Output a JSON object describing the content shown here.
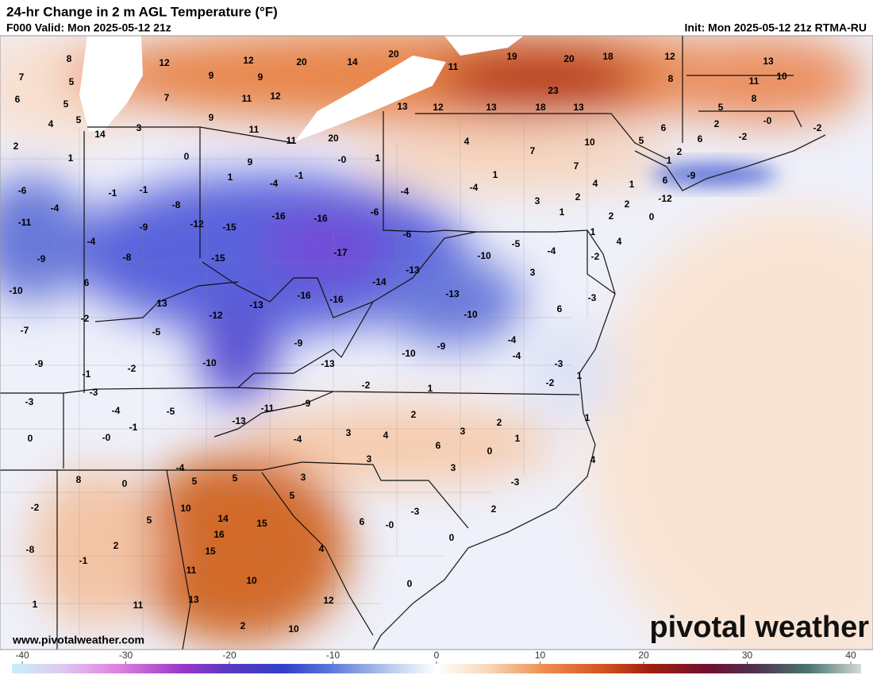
{
  "header": {
    "title": "24-hr Change in 2 m AGL Temperature (°F)",
    "valid": "F000 Valid: Mon 2025-05-12 21z",
    "init": "Init: Mon 2025-05-12 21z RTMA-RU"
  },
  "map_labels": [
    8,
    12,
    12,
    20,
    14,
    20,
    11,
    19,
    20,
    18,
    12,
    13,
    7,
    5,
    9,
    9,
    8,
    11,
    10,
    6,
    5,
    7,
    11,
    12,
    5,
    8,
    4,
    5,
    3,
    9,
    14,
    11,
    11,
    20,
    13,
    12,
    13,
    18,
    23,
    13,
    6,
    2,
    -2,
    {
      "value": 0,
      "label": "-0"
    },
    -2,
    2,
    1,
    0,
    9,
    {
      "value": 0,
      "label": "-0"
    },
    1,
    4,
    7,
    10,
    5,
    6,
    2,
    7,
    1,
    1,
    -9,
    6,
    1,
    -4,
    -1,
    -6,
    -4,
    -1,
    -1,
    -8,
    -4,
    -4,
    4,
    1,
    2,
    3,
    1,
    -12,
    -11,
    -9,
    -12,
    -15,
    -16,
    -16,
    -6,
    -4,
    -8,
    2,
    2,
    0,
    -6,
    -15,
    -17,
    -9,
    -10,
    -5,
    -4,
    1,
    4,
    -2,
    6,
    -10,
    13,
    -13,
    -16,
    -16,
    -14,
    -13,
    3,
    -13,
    6,
    -3,
    -7,
    -2,
    -5,
    -12,
    -9,
    -10,
    -4,
    -4,
    -9,
    -10,
    -13,
    -9,
    -10,
    -1,
    -2,
    -3,
    1,
    -2,
    -2,
    1,
    -3,
    -3,
    -4,
    -5,
    -13,
    -11,
    -9,
    -1,
    {
      "value": 0,
      "label": "-0"
    },
    0,
    2,
    2,
    1,
    3,
    4,
    3,
    6,
    1,
    0,
    -4,
    4,
    3,
    3,
    -4,
    8,
    0,
    5,
    5,
    3,
    -3,
    5,
    10,
    -2,
    14,
    15,
    5,
    16,
    6,
    {
      "value": 0,
      "label": "-0"
    },
    -3,
    2,
    2,
    15,
    4,
    0,
    -8,
    -1,
    11,
    10,
    0,
    13,
    11,
    12,
    1,
    2,
    10
  ],
  "colorbar": {
    "ticks": [
      -40,
      -30,
      -20,
      -10,
      0,
      10,
      20,
      30,
      40
    ]
  },
  "footer": {
    "url": "www.pivotalweather.com",
    "logo": "pivotal weather"
  }
}
